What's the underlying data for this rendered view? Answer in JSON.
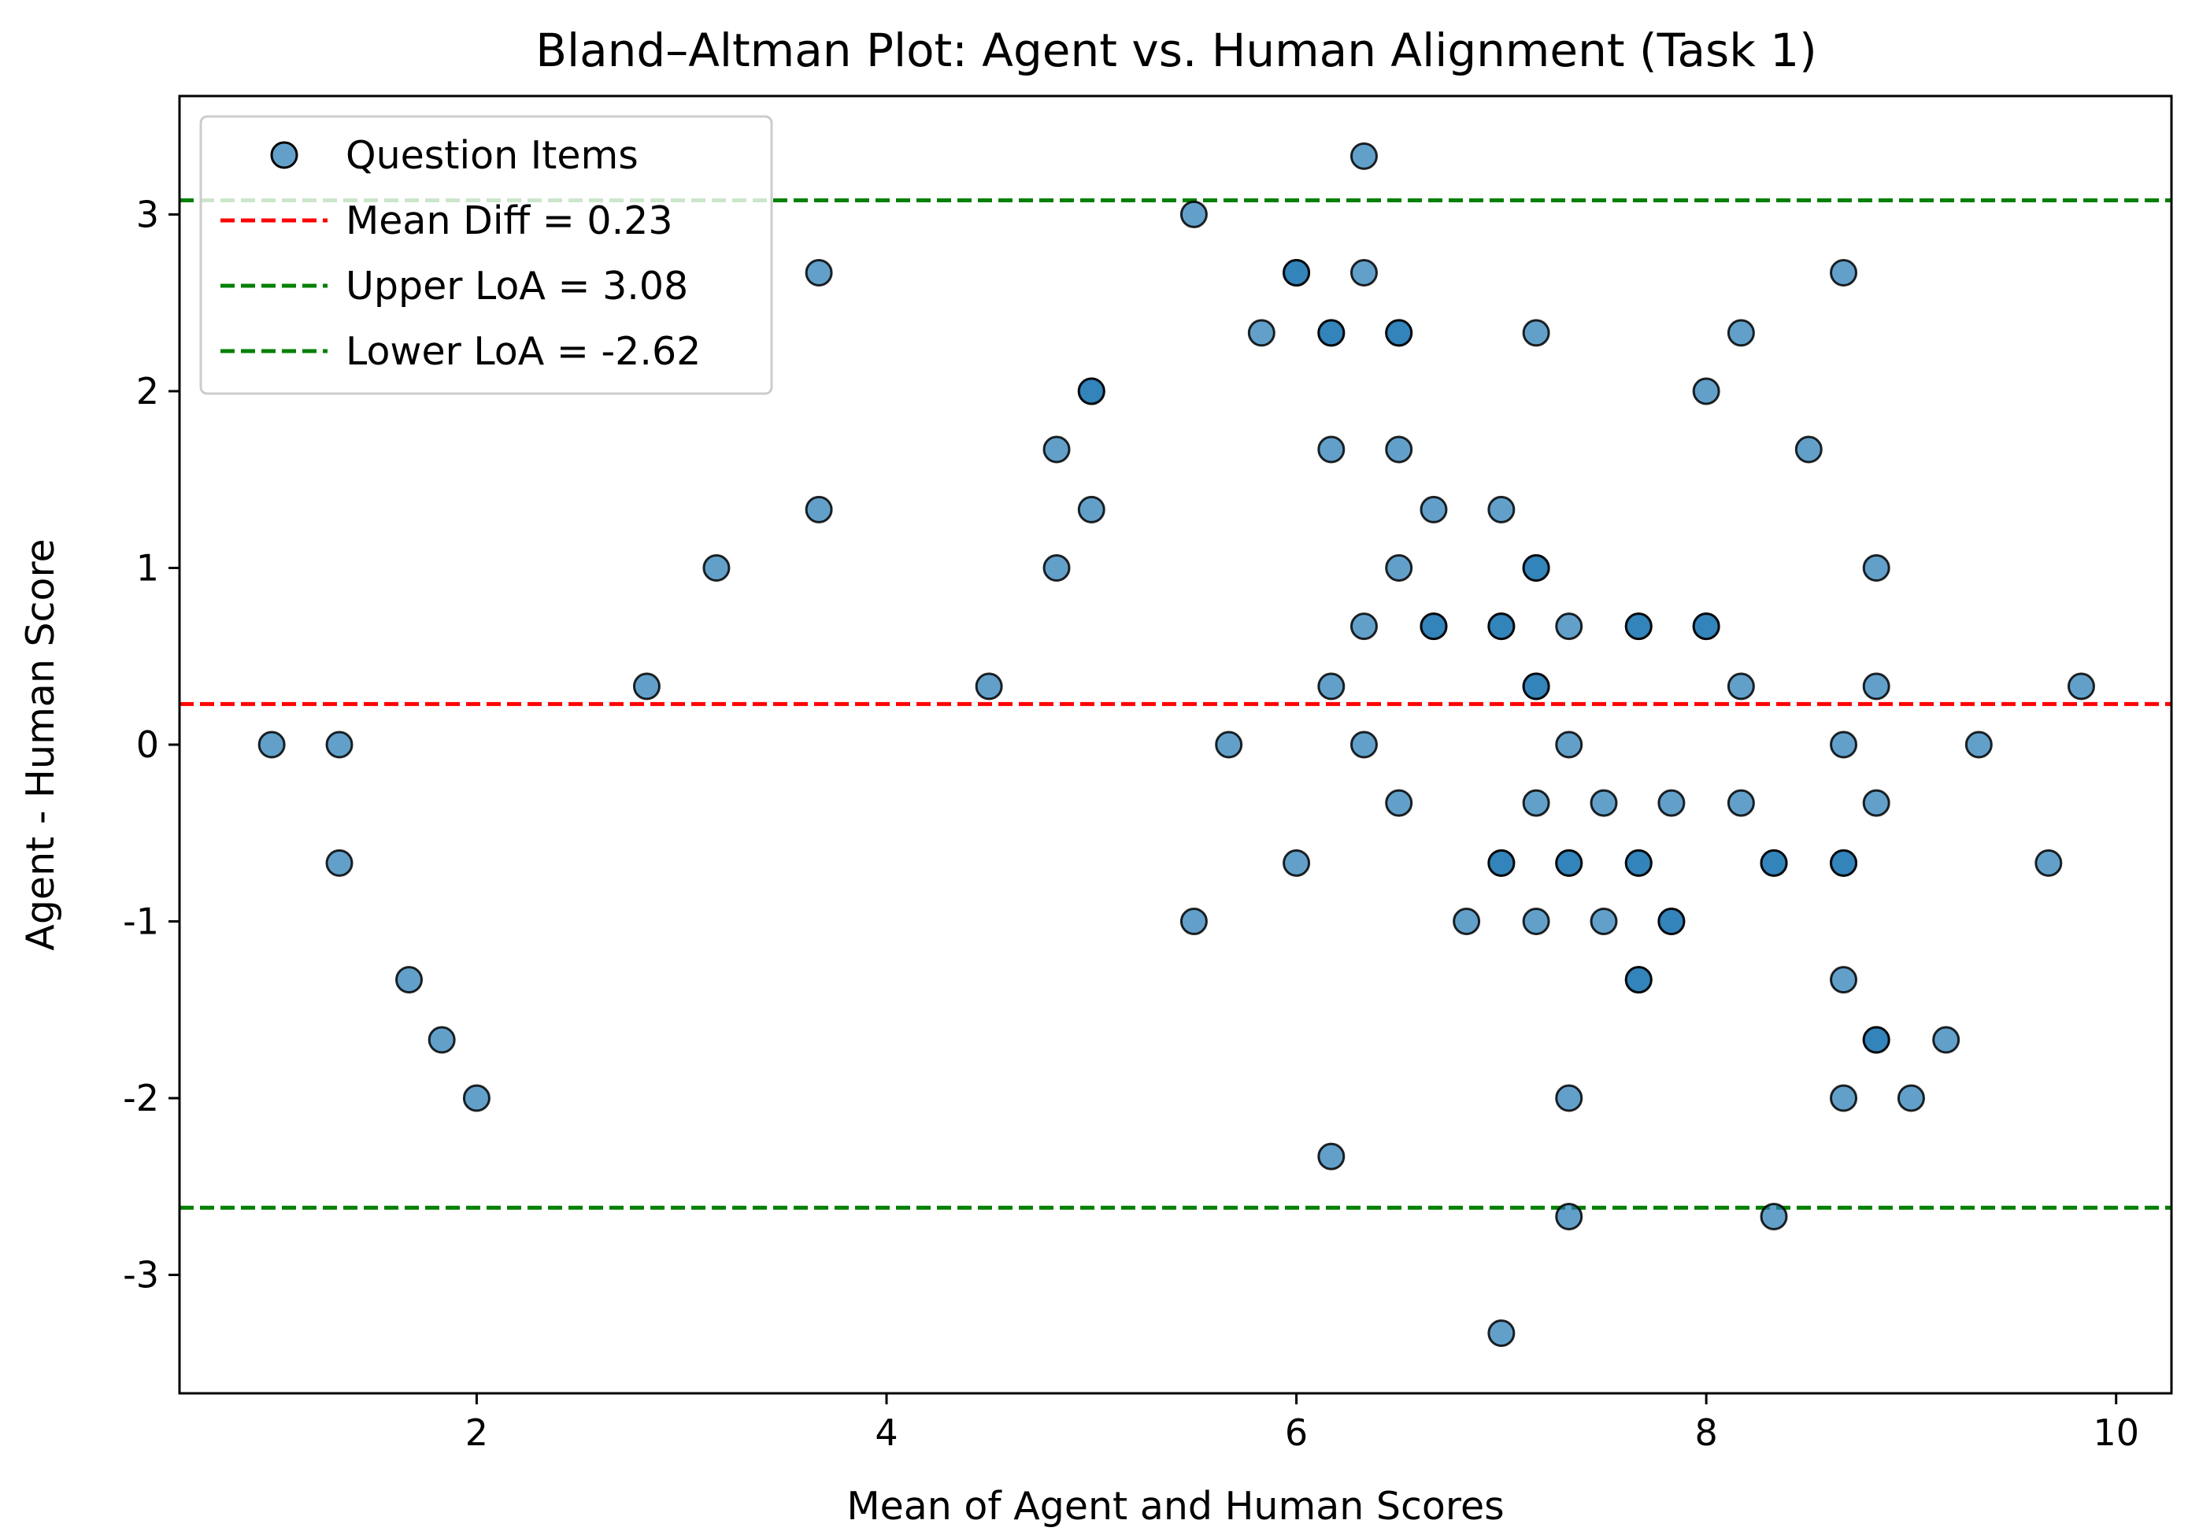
{
  "chart_data": {
    "type": "scatter",
    "title": "Bland–Altman Plot: Agent vs. Human Alignment (Task 1)",
    "xlabel": "Mean of Agent and Human Scores",
    "ylabel": "Agent - Human Score",
    "xlim": [
      0.55,
      10.27
    ],
    "ylim": [
      -3.67,
      3.67
    ],
    "xticks": [
      2,
      4,
      6,
      8,
      10
    ],
    "yticks": [
      -3,
      -2,
      -1,
      0,
      1,
      2,
      3
    ],
    "ytick_labels": [
      "-3",
      "-2",
      "-1",
      "0",
      "1",
      "2",
      "3"
    ],
    "grid": false,
    "legend_position": "upper left",
    "colors": {
      "points": "#1f77b4",
      "point_edge": "#000000",
      "mean_line": "#ff0000",
      "loa_line": "#008000"
    },
    "legend": [
      {
        "label": "Question Items",
        "kind": "marker"
      },
      {
        "label": "Mean Diff = 0.23",
        "kind": "line",
        "color": "#ff0000"
      },
      {
        "label": "Upper LoA = 3.08",
        "kind": "line",
        "color": "#008000"
      },
      {
        "label": "Lower LoA = -2.62",
        "kind": "line",
        "color": "#008000"
      }
    ],
    "hlines": [
      {
        "name": "Mean Diff",
        "y": 0.23,
        "color": "#ff0000"
      },
      {
        "name": "Upper LoA",
        "y": 3.08,
        "color": "#008000"
      },
      {
        "name": "Lower LoA",
        "y": -2.62,
        "color": "#008000"
      }
    ],
    "series": [
      {
        "name": "Question Items",
        "points": [
          [
            1.0,
            0.0
          ],
          [
            1.33,
            0.0
          ],
          [
            1.33,
            -0.67
          ],
          [
            1.67,
            -1.33
          ],
          [
            1.83,
            -1.67
          ],
          [
            2.0,
            -2.0
          ],
          [
            2.83,
            0.33
          ],
          [
            3.17,
            1.0
          ],
          [
            3.67,
            2.67
          ],
          [
            3.67,
            1.33
          ],
          [
            4.5,
            0.33
          ],
          [
            4.83,
            1.67
          ],
          [
            4.83,
            1.0
          ],
          [
            5.0,
            2.0
          ],
          [
            5.0,
            2.0
          ],
          [
            5.0,
            1.33
          ],
          [
            5.5,
            3.0
          ],
          [
            5.5,
            -1.0
          ],
          [
            5.67,
            0.0
          ],
          [
            5.83,
            2.33
          ],
          [
            6.0,
            2.67
          ],
          [
            6.0,
            2.67
          ],
          [
            6.0,
            -0.67
          ],
          [
            6.17,
            2.33
          ],
          [
            6.17,
            2.33
          ],
          [
            6.17,
            1.67
          ],
          [
            6.17,
            0.33
          ],
          [
            6.17,
            -2.33
          ],
          [
            6.33,
            3.33
          ],
          [
            6.33,
            2.67
          ],
          [
            6.33,
            0.67
          ],
          [
            6.33,
            0.0
          ],
          [
            6.5,
            2.33
          ],
          [
            6.5,
            2.33
          ],
          [
            6.5,
            1.67
          ],
          [
            6.5,
            1.0
          ],
          [
            6.5,
            -0.33
          ],
          [
            6.67,
            1.33
          ],
          [
            6.67,
            0.67
          ],
          [
            6.67,
            0.67
          ],
          [
            6.83,
            -1.0
          ],
          [
            7.0,
            1.33
          ],
          [
            7.0,
            0.67
          ],
          [
            7.0,
            0.67
          ],
          [
            7.0,
            -0.67
          ],
          [
            7.0,
            -0.67
          ],
          [
            7.0,
            -3.33
          ],
          [
            7.17,
            2.33
          ],
          [
            7.17,
            1.0
          ],
          [
            7.17,
            1.0
          ],
          [
            7.17,
            0.33
          ],
          [
            7.17,
            0.33
          ],
          [
            7.17,
            -0.33
          ],
          [
            7.17,
            -1.0
          ],
          [
            7.33,
            0.67
          ],
          [
            7.33,
            0.0
          ],
          [
            7.33,
            -0.67
          ],
          [
            7.33,
            -0.67
          ],
          [
            7.33,
            -2.0
          ],
          [
            7.33,
            -2.67
          ],
          [
            7.5,
            -0.33
          ],
          [
            7.5,
            -1.0
          ],
          [
            7.67,
            0.67
          ],
          [
            7.67,
            0.67
          ],
          [
            7.67,
            -0.67
          ],
          [
            7.67,
            -0.67
          ],
          [
            7.67,
            -1.33
          ],
          [
            7.67,
            -1.33
          ],
          [
            7.83,
            -0.33
          ],
          [
            7.83,
            -1.0
          ],
          [
            7.83,
            -1.0
          ],
          [
            8.0,
            2.0
          ],
          [
            8.0,
            0.67
          ],
          [
            8.0,
            0.67
          ],
          [
            8.17,
            2.33
          ],
          [
            8.17,
            0.33
          ],
          [
            8.17,
            -0.33
          ],
          [
            8.33,
            -0.67
          ],
          [
            8.33,
            -0.67
          ],
          [
            8.33,
            -2.67
          ],
          [
            8.5,
            1.67
          ],
          [
            8.67,
            2.67
          ],
          [
            8.67,
            0.0
          ],
          [
            8.67,
            -0.67
          ],
          [
            8.67,
            -0.67
          ],
          [
            8.67,
            -1.33
          ],
          [
            8.67,
            -2.0
          ],
          [
            8.83,
            1.0
          ],
          [
            8.83,
            0.33
          ],
          [
            8.83,
            -0.33
          ],
          [
            8.83,
            -1.67
          ],
          [
            8.83,
            -1.67
          ],
          [
            9.0,
            -2.0
          ],
          [
            9.17,
            -1.67
          ],
          [
            9.33,
            0.0
          ],
          [
            9.67,
            -0.67
          ],
          [
            9.83,
            0.33
          ]
        ]
      }
    ]
  }
}
